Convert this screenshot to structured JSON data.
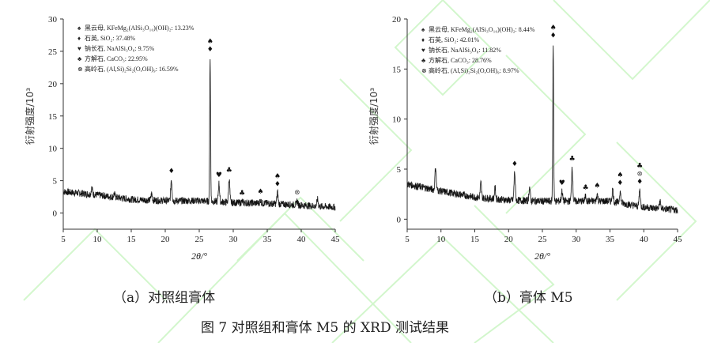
{
  "figure_caption": "图 7 对照组和膏体 M5 的 XRD 测试结果",
  "panels": [
    {
      "caption": "（a）对照组膏体",
      "ylabel": "衍射强度/10³",
      "xlabel": "2θ/°",
      "legend": [
        {
          "symbol": "♠",
          "text": "黑云母, KFeMg₂(AlSi₃O₁₀)(OH)₂: 13.23%"
        },
        {
          "symbol": "♦",
          "text": "石英, SiO₂: 37.48%"
        },
        {
          "symbol": "♥",
          "text": "钠长石, NaAlSi₃O₈: 9.75%"
        },
        {
          "symbol": "♣",
          "text": "方解石, CaCO₃: 22.95%"
        },
        {
          "symbol": "⊗",
          "text": "高岭石, (Al,Si)₂Si₂(O,OH)₉: 16.59%"
        }
      ]
    },
    {
      "caption": "（b）膏体 M5",
      "ylabel": "衍射强度/10³",
      "xlabel": "2θ/°",
      "legend": [
        {
          "symbol": "♠",
          "text": "黑云母, KFeMg₂(AlSi₃O₁₀)(OH)₂: 8.44%"
        },
        {
          "symbol": "♦",
          "text": "石英, SiO₂: 42.01%"
        },
        {
          "symbol": "♥",
          "text": "钠长石, NaAlSi₃O₈: 11.82%"
        },
        {
          "symbol": "♣",
          "text": "方解石, CaCO₃: 28.76%"
        },
        {
          "symbol": "⊗",
          "text": "高岭石, (Al,Si)₂Si₂(O,OH)₉: 8.97%"
        }
      ]
    }
  ],
  "chart_data": [
    {
      "type": "line",
      "title": "（a）对照组膏体",
      "xlabel": "2θ/°",
      "ylabel": "衍射强度/10³",
      "xlim": [
        5,
        45
      ],
      "ylim": [
        -2.5,
        30
      ],
      "xticks": [
        5,
        10,
        15,
        20,
        25,
        30,
        35,
        40,
        45
      ],
      "yticks": [
        0,
        5,
        10,
        15,
        20,
        25,
        30
      ],
      "grid": false,
      "legend_position": "upper-left",
      "baseline": {
        "x": [
          5,
          10,
          15,
          20,
          25,
          30,
          35,
          40,
          45
        ],
        "y": [
          3.3,
          2.8,
          2.1,
          1.9,
          1.9,
          1.6,
          1.5,
          1.2,
          0.9
        ]
      },
      "peaks": [
        {
          "x": 9.2,
          "y": 3.9,
          "label": ""
        },
        {
          "x": 12.5,
          "y": 3.0,
          "label": ""
        },
        {
          "x": 18.0,
          "y": 3.0,
          "label": ""
        },
        {
          "x": 20.9,
          "y": 5.2,
          "label": "♦"
        },
        {
          "x": 26.6,
          "y": 24.0,
          "label": "♠♦"
        },
        {
          "x": 27.9,
          "y": 4.6,
          "label": "♥"
        },
        {
          "x": 29.4,
          "y": 5.3,
          "label": "♣"
        },
        {
          "x": 31.3,
          "y": 1.8,
          "label": "♣"
        },
        {
          "x": 34.0,
          "y": 2.0,
          "label": "♠"
        },
        {
          "x": 36.5,
          "y": 3.2,
          "label": "♠♦"
        },
        {
          "x": 39.4,
          "y": 1.9,
          "label": "⊗"
        },
        {
          "x": 42.4,
          "y": 2.1,
          "label": ""
        }
      ],
      "legend": [
        "黑云母 13.23%",
        "石英 37.48%",
        "钠长石 9.75%",
        "方解石 22.95%",
        "高岭石 16.59%"
      ]
    },
    {
      "type": "line",
      "title": "（b）膏体 M5",
      "xlabel": "2θ/°",
      "ylabel": "衍射强度/10³",
      "xlim": [
        5,
        45
      ],
      "ylim": [
        -1,
        20
      ],
      "xticks": [
        5,
        10,
        15,
        20,
        25,
        30,
        35,
        40,
        45
      ],
      "yticks": [
        0,
        5,
        10,
        15,
        20
      ],
      "grid": false,
      "legend_position": "upper-left",
      "baseline": {
        "x": [
          5,
          10,
          15,
          20,
          25,
          30,
          35,
          40,
          45
        ],
        "y": [
          3.5,
          2.8,
          2.2,
          1.9,
          1.8,
          1.8,
          1.8,
          1.2,
          0.9
        ]
      },
      "peaks": [
        {
          "x": 9.2,
          "y": 5.2,
          "label": ""
        },
        {
          "x": 15.9,
          "y": 3.6,
          "label": ""
        },
        {
          "x": 18.0,
          "y": 3.1,
          "label": ""
        },
        {
          "x": 20.9,
          "y": 4.7,
          "label": "♦"
        },
        {
          "x": 23.1,
          "y": 3.2,
          "label": ""
        },
        {
          "x": 26.6,
          "y": 17.5,
          "label": "♠♦"
        },
        {
          "x": 27.9,
          "y": 2.8,
          "label": "♥"
        },
        {
          "x": 29.4,
          "y": 5.2,
          "label": "♣"
        },
        {
          "x": 31.4,
          "y": 2.3,
          "label": "♣"
        },
        {
          "x": 33.1,
          "y": 2.5,
          "label": "♠"
        },
        {
          "x": 35.4,
          "y": 3.0,
          "label": ""
        },
        {
          "x": 36.5,
          "y": 2.8,
          "label": "♠♦"
        },
        {
          "x": 39.4,
          "y": 2.9,
          "label": "♣⊗♦"
        },
        {
          "x": 42.4,
          "y": 1.8,
          "label": ""
        }
      ],
      "legend": [
        "黑云母 8.44%",
        "石英 42.01%",
        "钠长石 11.82%",
        "方解石 28.76%",
        "高岭石 8.97%"
      ]
    }
  ]
}
